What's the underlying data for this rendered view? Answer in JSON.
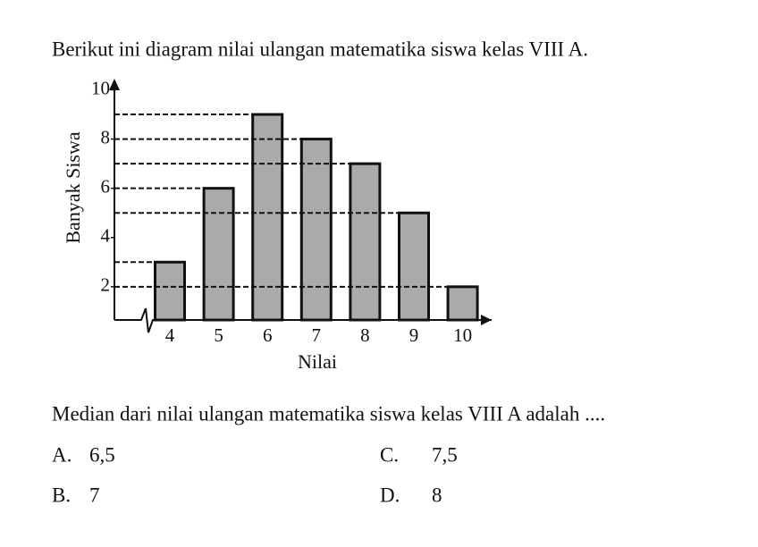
{
  "question": "Berikut ini diagram nilai ulangan matematika siswa kelas VIII A.",
  "chart_data": {
    "type": "bar",
    "x_label": "Nilai",
    "y_label": "Banyak Siswa",
    "categories": [
      "4",
      "5",
      "6",
      "7",
      "8",
      "9",
      "10"
    ],
    "values": [
      3,
      6,
      9,
      8,
      7,
      5,
      2
    ],
    "color": "#aaaaaa",
    "ylim": [
      0.65,
      10.4
    ],
    "yticks": [
      2,
      4,
      6,
      8,
      10
    ],
    "grid": true
  },
  "prompt": "Median dari nilai ulangan matematika siswa kelas VIII A adalah ....",
  "options": [
    {
      "letter": "A.",
      "text": "6,5"
    },
    {
      "letter": "B.",
      "text": "7"
    },
    {
      "letter": "C.",
      "text": "7,5"
    },
    {
      "letter": "D.",
      "text": "8"
    }
  ]
}
